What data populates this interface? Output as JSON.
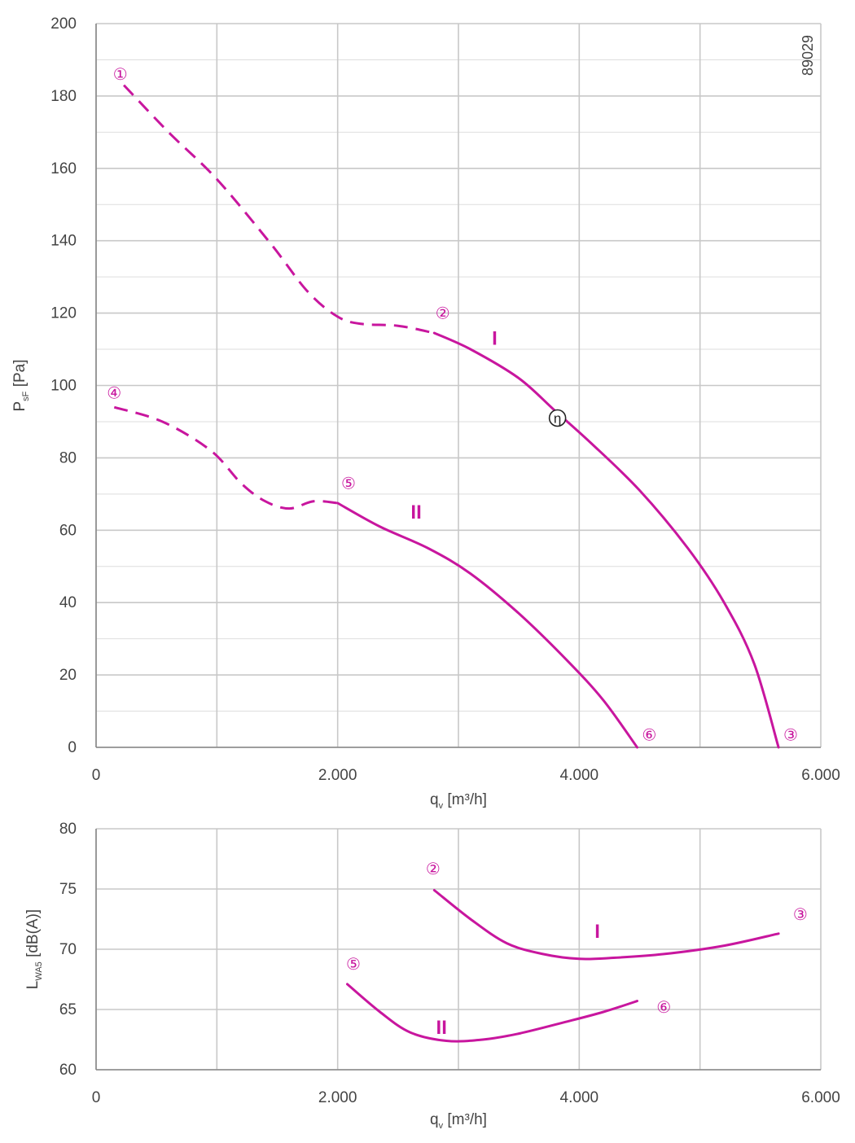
{
  "colors": {
    "curve": "#c8169e",
    "grid": "#c8c8c8",
    "axis": "#888888",
    "eta": "#222222",
    "text": "#444444"
  },
  "figure_code": "89029",
  "chart_data": [
    {
      "type": "line",
      "ylabel": {
        "main": "P",
        "sub": "sF",
        "unit": " [Pa]"
      },
      "xlabel": {
        "main": "q",
        "sub": "v",
        "unit": " [m³/h]"
      },
      "xlim": [
        0,
        6000
      ],
      "ylim": [
        0,
        200
      ],
      "x_ticks": [
        0,
        2000,
        4000,
        6000
      ],
      "x_tick_labels": [
        "0",
        "2.000",
        "4.000",
        "6.000"
      ],
      "y_ticks": [
        0,
        20,
        40,
        60,
        80,
        100,
        120,
        140,
        160,
        180,
        200
      ],
      "y_tick_labels": [
        "0",
        "20",
        "40",
        "60",
        "80",
        "100",
        "120",
        "140",
        "160",
        "180",
        "200"
      ],
      "grid": {
        "x_major_step": 1000,
        "y_major_step": 20,
        "y_minor_step": 10
      },
      "series": [
        {
          "name": "I",
          "dashed": [
            [
              230,
              183
            ],
            [
              600,
              170
            ],
            [
              1000,
              157
            ],
            [
              1450,
              139
            ],
            [
              1750,
              126
            ],
            [
              2000,
              119
            ],
            [
              2200,
              117
            ],
            [
              2500,
              116.5
            ],
            [
              2800,
              114.5
            ]
          ],
          "solid": [
            [
              2800,
              114.5
            ],
            [
              3100,
              110
            ],
            [
              3500,
              102
            ],
            [
              3800,
              93
            ],
            [
              4100,
              84
            ],
            [
              4500,
              71
            ],
            [
              4900,
              55
            ],
            [
              5200,
              40
            ],
            [
              5450,
              23
            ],
            [
              5650,
              0
            ]
          ]
        },
        {
          "name": "II",
          "dashed": [
            [
              150,
              94
            ],
            [
              550,
              90
            ],
            [
              950,
              82
            ],
            [
              1200,
              73
            ],
            [
              1400,
              68
            ],
            [
              1600,
              66
            ],
            [
              1800,
              68
            ],
            [
              2000,
              67.5
            ]
          ],
          "solid": [
            [
              2000,
              67.5
            ],
            [
              2350,
              61
            ],
            [
              2750,
              55
            ],
            [
              3100,
              48
            ],
            [
              3500,
              37
            ],
            [
              3900,
              24
            ],
            [
              4200,
              13
            ],
            [
              4480,
              0
            ]
          ]
        }
      ],
      "series_labels": [
        {
          "text": "I",
          "x": 3300,
          "y": 113
        },
        {
          "text": "II",
          "x": 2650,
          "y": 65
        }
      ],
      "point_markers": [
        {
          "label": "①",
          "x": 200,
          "y": 186
        },
        {
          "label": "②",
          "x": 2870,
          "y": 120
        },
        {
          "label": "③",
          "x": 5750,
          "y": 3.5
        },
        {
          "label": "④",
          "x": 150,
          "y": 98
        },
        {
          "label": "⑤",
          "x": 2090,
          "y": 73
        },
        {
          "label": "⑥",
          "x": 4580,
          "y": 3.5
        }
      ],
      "annotation": {
        "label": "η",
        "x": 3820,
        "y": 91
      }
    },
    {
      "type": "line",
      "ylabel": {
        "main": "L",
        "sub": "WA5",
        "unit": " [dB(A)]"
      },
      "xlabel": {
        "main": "q",
        "sub": "v",
        "unit": " [m³/h]"
      },
      "xlim": [
        0,
        6000
      ],
      "ylim": [
        60,
        80
      ],
      "x_ticks": [
        0,
        2000,
        4000,
        6000
      ],
      "x_tick_labels": [
        "0",
        "2.000",
        "4.000",
        "6.000"
      ],
      "y_ticks": [
        60,
        65,
        70,
        75,
        80
      ],
      "y_tick_labels": [
        "60",
        "65",
        "70",
        "75",
        "80"
      ],
      "grid": {
        "x_major_step": 1000,
        "y_major_step": 5
      },
      "series": [
        {
          "name": "I",
          "solid": [
            [
              2800,
              74.9
            ],
            [
              3100,
              72.5
            ],
            [
              3400,
              70.5
            ],
            [
              3700,
              69.6
            ],
            [
              4000,
              69.2
            ],
            [
              4300,
              69.3
            ],
            [
              4700,
              69.6
            ],
            [
              5200,
              70.3
            ],
            [
              5650,
              71.3
            ]
          ]
        },
        {
          "name": "II",
          "solid": [
            [
              2080,
              67.1
            ],
            [
              2350,
              64.8
            ],
            [
              2600,
              63.1
            ],
            [
              2900,
              62.4
            ],
            [
              3200,
              62.5
            ],
            [
              3500,
              63.0
            ],
            [
              3900,
              64.0
            ],
            [
              4200,
              64.8
            ],
            [
              4480,
              65.7
            ]
          ]
        }
      ],
      "series_labels": [
        {
          "text": "I",
          "x": 4150,
          "y": 71.5
        },
        {
          "text": "II",
          "x": 2860,
          "y": 63.5
        }
      ],
      "point_markers": [
        {
          "label": "②",
          "x": 2790,
          "y": 76.7
        },
        {
          "label": "③",
          "x": 5830,
          "y": 72.9
        },
        {
          "label": "⑤",
          "x": 2130,
          "y": 68.8
        },
        {
          "label": "⑥",
          "x": 4700,
          "y": 65.2
        }
      ]
    }
  ]
}
